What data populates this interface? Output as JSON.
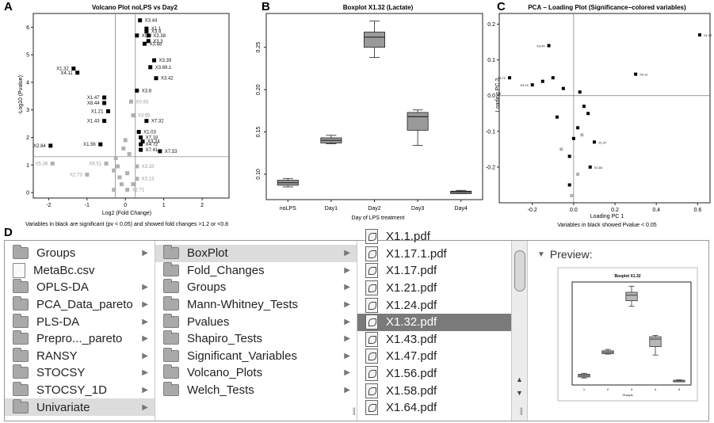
{
  "panel_labels": {
    "a": "A",
    "b": "B",
    "c": "C",
    "d": "D"
  },
  "chart_data": [
    {
      "id": "volcano",
      "type": "scatter",
      "title": "Volcano Plot noLPS vs Day2",
      "xlabel": "Log2 (Fold Change)",
      "ylabel": "-Log10 (Pvalue)",
      "caption": "Variables in black are significant (pv < 0.05) and showed fold changes >1.2 or <0.8",
      "xlim": [
        -2.4,
        2.7
      ],
      "ylim": [
        -0.2,
        6.5
      ],
      "xticks": [
        "-2",
        "-1",
        "0",
        "1",
        "2"
      ],
      "yticks": [
        "0",
        "1",
        "2",
        "3",
        "4",
        "5",
        "6"
      ],
      "reference_lines": {
        "x": [
          -0.26,
          0.26
        ],
        "y": 1.3
      },
      "series": [
        {
          "color": "#000000",
          "points": [
            {
              "x": 0.38,
              "y": 6.25,
              "label": "X3.44"
            },
            {
              "x": 0.55,
              "y": 5.95,
              "label": "X1.1"
            },
            {
              "x": 0.55,
              "y": 5.85,
              "label": "X3.4"
            },
            {
              "x": 0.6,
              "y": 5.7,
              "label": "X3.38"
            },
            {
              "x": 0.3,
              "y": 5.7,
              "label": "X0.9"
            },
            {
              "x": 0.6,
              "y": 5.5,
              "label": "X3.3"
            },
            {
              "x": 0.5,
              "y": 5.4,
              "label": "X3.48"
            },
            {
              "x": 0.75,
              "y": 4.8,
              "label": "X3.39"
            },
            {
              "x": 0.65,
              "y": 4.55,
              "label": "X3.69.1"
            },
            {
              "x": 0.8,
              "y": 4.15,
              "label": "X3.42"
            },
            {
              "x": -1.35,
              "y": 4.5,
              "label": "X1.32"
            },
            {
              "x": -1.25,
              "y": 4.35,
              "label": "X4.11"
            },
            {
              "x": 0.3,
              "y": 3.7,
              "label": "X3.8"
            },
            {
              "x": -0.55,
              "y": 3.45,
              "label": "X1.47"
            },
            {
              "x": -0.55,
              "y": 3.25,
              "label": "X8.44"
            },
            {
              "x": -0.45,
              "y": 2.95,
              "label": "X1.21"
            },
            {
              "x": -0.55,
              "y": 2.6,
              "label": "X1.43"
            },
            {
              "x": 0.55,
              "y": 2.6,
              "label": "X7.32"
            },
            {
              "x": 0.35,
              "y": 2.2,
              "label": "X1.03"
            },
            {
              "x": 0.4,
              "y": 2.0,
              "label": "X7.18"
            },
            {
              "x": 0.45,
              "y": 1.85,
              "label": "X3.24"
            },
            {
              "x": 0.4,
              "y": 1.75,
              "label": "X4.72"
            },
            {
              "x": 0.4,
              "y": 1.55,
              "label": "X7.41"
            },
            {
              "x": 0.9,
              "y": 1.5,
              "label": "X7.53"
            },
            {
              "x": -1.95,
              "y": 1.7,
              "label": "X2.84"
            },
            {
              "x": -0.65,
              "y": 1.75,
              "label": "X1.56"
            }
          ]
        },
        {
          "color": "#b0b0b0",
          "points": [
            {
              "x": -1.9,
              "y": 1.05,
              "label": "X5.38"
            },
            {
              "x": -0.5,
              "y": 1.05,
              "label": "X6.51"
            },
            {
              "x": -1.0,
              "y": 0.65,
              "label": "X2.73"
            },
            {
              "x": -0.3,
              "y": 0.8,
              "label": ""
            },
            {
              "x": -0.15,
              "y": 0.55,
              "label": ""
            },
            {
              "x": -0.25,
              "y": 1.25,
              "label": ""
            },
            {
              "x": 0.15,
              "y": 3.3,
              "label": "X0.93"
            },
            {
              "x": 0.2,
              "y": 2.8,
              "label": "X3.65"
            },
            {
              "x": 0.3,
              "y": 0.95,
              "label": "X3.33"
            },
            {
              "x": 0.3,
              "y": 0.5,
              "label": "X3.13"
            },
            {
              "x": 0.05,
              "y": 0.1,
              "label": "X2.71"
            },
            {
              "x": -0.3,
              "y": 0.1,
              "label": ""
            },
            {
              "x": -0.1,
              "y": 0.3,
              "label": ""
            },
            {
              "x": 0.1,
              "y": 1.4,
              "label": ""
            },
            {
              "x": -0.05,
              "y": 1.6,
              "label": ""
            },
            {
              "x": 0.05,
              "y": 0.7,
              "label": ""
            },
            {
              "x": -0.2,
              "y": 0.95,
              "label": ""
            },
            {
              "x": 0.0,
              "y": 1.9,
              "label": ""
            },
            {
              "x": 0.2,
              "y": 0.3,
              "label": ""
            }
          ]
        }
      ]
    },
    {
      "id": "boxplot",
      "type": "box",
      "title": "Boxplot X1.32 (Lactate)",
      "xlabel": "Day of LPS treatment",
      "ylabel": "",
      "categories": [
        "noLPS",
        "Day1",
        "Day2",
        "Day3",
        "Day4"
      ],
      "ylim": [
        0.07,
        0.29
      ],
      "yticks": [
        "0.10",
        "0.15",
        "0.20",
        "0.25"
      ],
      "boxes": [
        {
          "min": 0.085,
          "q1": 0.087,
          "median": 0.09,
          "q3": 0.093,
          "max": 0.095
        },
        {
          "min": 0.136,
          "q1": 0.137,
          "median": 0.14,
          "q3": 0.143,
          "max": 0.146
        },
        {
          "min": 0.238,
          "q1": 0.25,
          "median": 0.262,
          "q3": 0.268,
          "max": 0.281
        },
        {
          "min": 0.134,
          "q1": 0.152,
          "median": 0.168,
          "q3": 0.173,
          "max": 0.176
        },
        {
          "min": 0.077,
          "q1": 0.077,
          "median": 0.079,
          "q3": 0.08,
          "max": 0.081
        }
      ],
      "colors": {
        "box": "#9a9a9a",
        "median": "#333333",
        "line": "#222222"
      }
    },
    {
      "id": "pca_loading",
      "type": "scatter",
      "title": "PCA − Loading Plot (Significance−colored variables)",
      "xlabel": "Loading PC 1",
      "ylabel": "Loading PC 2",
      "caption": "Variables in black showed Pvalue < 0.05",
      "xlim": [
        -0.36,
        0.66
      ],
      "ylim": [
        -0.3,
        0.23
      ],
      "xticks": [
        "-0.2",
        "0.0",
        "0.2",
        "0.4",
        "0.6"
      ],
      "yticks": [
        "-0.2",
        "-0.1",
        "0.0",
        "0.1",
        "0.2"
      ],
      "reference_lines": {
        "x": [
          0.0
        ],
        "y": 0.0
      },
      "series": [
        {
          "color": "#000000",
          "points": [
            {
              "x": 0.61,
              "y": 0.17,
              "label": "X1.32"
            },
            {
              "x": 0.3,
              "y": 0.06,
              "label": "X4.11"
            },
            {
              "x": -0.31,
              "y": 0.05,
              "label": "X3.72"
            },
            {
              "x": -0.12,
              "y": 0.14,
              "label": "X3.44"
            },
            {
              "x": -0.2,
              "y": 0.03,
              "label": "X3.24"
            },
            {
              "x": 0.1,
              "y": -0.13,
              "label": "X1.47"
            },
            {
              "x": 0.08,
              "y": -0.2,
              "label": "X2.84"
            },
            {
              "x": -0.02,
              "y": -0.25,
              "label": ""
            },
            {
              "x": -0.02,
              "y": -0.17,
              "label": ""
            },
            {
              "x": 0.02,
              "y": -0.09,
              "label": ""
            },
            {
              "x": 0.05,
              "y": -0.03,
              "label": ""
            },
            {
              "x": -0.05,
              "y": 0.02,
              "label": ""
            },
            {
              "x": -0.08,
              "y": -0.06,
              "label": ""
            },
            {
              "x": 0.03,
              "y": 0.01,
              "label": ""
            },
            {
              "x": -0.1,
              "y": 0.05,
              "label": ""
            },
            {
              "x": 0.0,
              "y": -0.12,
              "label": ""
            },
            {
              "x": 0.07,
              "y": -0.05,
              "label": ""
            },
            {
              "x": -0.15,
              "y": 0.04,
              "label": ""
            }
          ]
        },
        {
          "color": "#b0b0b0",
          "points": [
            {
              "x": -0.01,
              "y": -0.28,
              "label": ""
            },
            {
              "x": 0.02,
              "y": -0.22,
              "label": ""
            },
            {
              "x": -0.06,
              "y": -0.15,
              "label": ""
            },
            {
              "x": 0.04,
              "y": -0.11,
              "label": ""
            }
          ]
        }
      ]
    }
  ],
  "finder": {
    "column1": [
      {
        "label": "Groups",
        "icon": "folder-icon",
        "arrow": true
      },
      {
        "label": "MetaBc.csv",
        "icon": "file-icon",
        "arrow": false
      },
      {
        "label": "OPLS-DA",
        "icon": "folder-icon",
        "arrow": true
      },
      {
        "label": "PCA_Data_pareto",
        "icon": "folder-icon",
        "arrow": true
      },
      {
        "label": "PLS-DA",
        "icon": "folder-icon",
        "arrow": true
      },
      {
        "label": "Prepro..._pareto",
        "icon": "folder-icon",
        "arrow": true
      },
      {
        "label": "RANSY",
        "icon": "folder-icon",
        "arrow": true
      },
      {
        "label": "STOCSY",
        "icon": "folder-icon",
        "arrow": true
      },
      {
        "label": "STOCSY_1D",
        "icon": "folder-icon",
        "arrow": true
      },
      {
        "label": "Univariate",
        "icon": "folder-icon",
        "arrow": true,
        "selected": true
      }
    ],
    "column2": [
      {
        "label": "BoxPlot",
        "icon": "folder-icon",
        "arrow": true,
        "selected": true
      },
      {
        "label": "Fold_Changes",
        "icon": "folder-icon",
        "arrow": true
      },
      {
        "label": "Groups",
        "icon": "folder-icon",
        "arrow": true
      },
      {
        "label": "Mann-Whitney_Tests",
        "icon": "folder-icon",
        "arrow": true
      },
      {
        "label": "Pvalues",
        "icon": "folder-icon",
        "arrow": true
      },
      {
        "label": "Shapiro_Tests",
        "icon": "folder-icon",
        "arrow": true
      },
      {
        "label": "Significant_Variables",
        "icon": "folder-icon",
        "arrow": true
      },
      {
        "label": "Volcano_Plots",
        "icon": "folder-icon",
        "arrow": true
      },
      {
        "label": "Welch_Tests",
        "icon": "folder-icon",
        "arrow": true
      }
    ],
    "column3": [
      {
        "label": "X1.1.pdf",
        "icon": "pdf-icon"
      },
      {
        "label": "X1.17.1.pdf",
        "icon": "pdf-icon"
      },
      {
        "label": "X1.17.pdf",
        "icon": "pdf-icon"
      },
      {
        "label": "X1.21.pdf",
        "icon": "pdf-icon"
      },
      {
        "label": "X1.24.pdf",
        "icon": "pdf-icon"
      },
      {
        "label": "X1.32.pdf",
        "icon": "pdf-icon",
        "highlighted": true
      },
      {
        "label": "X1.43.pdf",
        "icon": "pdf-icon"
      },
      {
        "label": "X1.47.pdf",
        "icon": "pdf-icon"
      },
      {
        "label": "X1.56.pdf",
        "icon": "pdf-icon"
      },
      {
        "label": "X1.58.pdf",
        "icon": "pdf-icon"
      },
      {
        "label": "X1.64.pdf",
        "icon": "pdf-icon"
      }
    ],
    "preview": {
      "label": "Preview:",
      "thumbnail_title": "Boxplot X1.32",
      "thumbnail_xlabel": "Groups",
      "thumbnail_categories": [
        "1",
        "2",
        "3",
        "4",
        "5"
      ]
    }
  }
}
